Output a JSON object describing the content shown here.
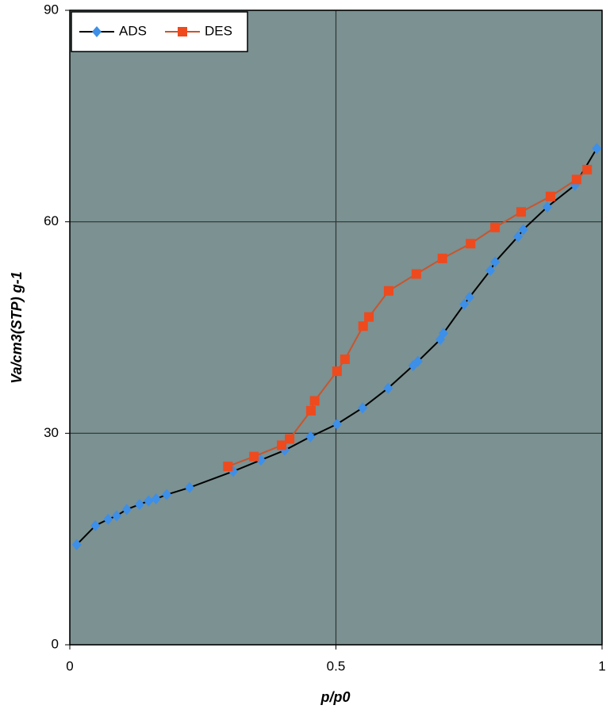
{
  "chart_data": {
    "type": "line",
    "xlabel": "p/p0",
    "ylabel": "Va/cm3(STP) g-1",
    "xlim": [
      0,
      1
    ],
    "xticks": [
      0,
      0.5,
      1
    ],
    "ylim": [
      0,
      90
    ],
    "yticks": [
      0,
      30,
      60,
      90
    ],
    "grid": true,
    "legend": "upper left",
    "background": "#7b9192",
    "series": [
      {
        "name": "ADS",
        "color": "#3d8fe8",
        "line_color": "#000000",
        "marker": "diamond",
        "x": [
          0.013,
          0.048,
          0.072,
          0.088,
          0.107,
          0.131,
          0.148,
          0.162,
          0.182,
          0.225,
          0.307,
          0.359,
          0.404,
          0.452,
          0.502,
          0.55,
          0.598,
          0.645,
          0.654,
          0.696,
          0.702,
          0.741,
          0.751,
          0.79,
          0.799,
          0.842,
          0.852,
          0.897,
          0.949,
          0.99
        ],
        "values": [
          14.2,
          16.9,
          17.8,
          18.3,
          19.2,
          19.9,
          20.4,
          20.7,
          21.3,
          22.3,
          24.6,
          26.2,
          27.6,
          29.5,
          31.3,
          33.6,
          36.4,
          39.6,
          40.2,
          43.3,
          44.2,
          48.3,
          49.3,
          53.1,
          54.3,
          57.9,
          58.9,
          62.1,
          65.2,
          70.4
        ]
      },
      {
        "name": "DES",
        "color": "#ee4a1e",
        "line_color": "#c8552d",
        "marker": "square",
        "x": [
          0.297,
          0.346,
          0.398,
          0.413,
          0.453,
          0.46,
          0.502,
          0.517,
          0.551,
          0.562,
          0.599,
          0.651,
          0.7,
          0.753,
          0.799,
          0.848,
          0.903,
          0.952,
          0.972
        ],
        "values": [
          25.3,
          26.7,
          28.3,
          29.2,
          33.2,
          34.6,
          38.8,
          40.5,
          45.2,
          46.5,
          50.2,
          52.6,
          54.8,
          56.9,
          59.2,
          61.4,
          63.6,
          66.0,
          67.4
        ]
      }
    ]
  }
}
